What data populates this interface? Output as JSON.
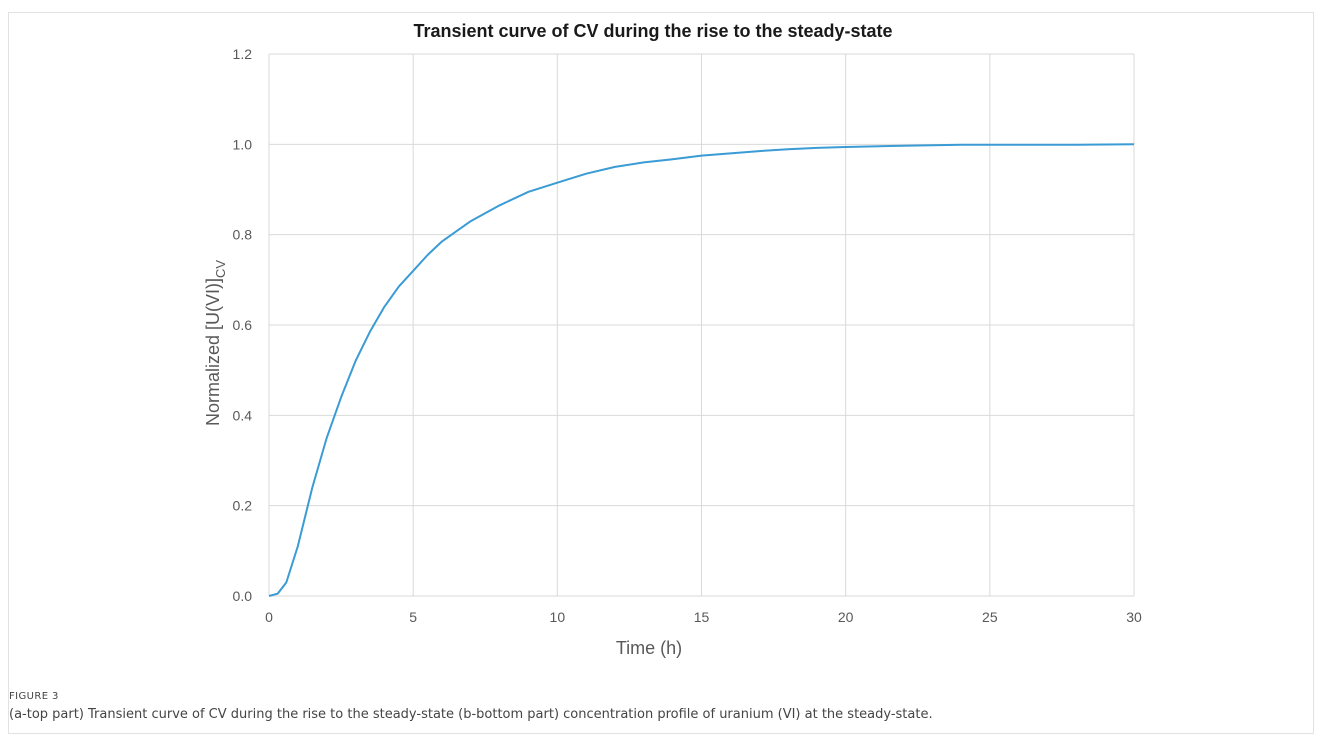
{
  "caption": {
    "label": "FIGURE 3",
    "text": "(a-top part) Transient curve of CV during the rise to the steady-state (b-bottom part) concentration profile of uranium (VI) at the steady-state."
  },
  "chart_data": {
    "type": "line",
    "title": "Transient curve of CV during the rise to the steady-state",
    "xlabel": "Time (h)",
    "ylabel_main": "Normalized [U(VI)]",
    "ylabel_sub": "CV",
    "xlim": [
      0,
      30
    ],
    "ylim": [
      0,
      1.2
    ],
    "x_ticks": [
      "0",
      "5",
      "10",
      "15",
      "20",
      "25",
      "30"
    ],
    "x_tick_values": [
      0,
      5,
      10,
      15,
      20,
      25,
      30
    ],
    "y_ticks": [
      "0.0",
      "0.2",
      "0.4",
      "0.6",
      "0.8",
      "1.0",
      "1.2"
    ],
    "y_tick_values": [
      0,
      0.2,
      0.4,
      0.6,
      0.8,
      1.0,
      1.2
    ],
    "grid": true,
    "line_color": "#3a9bd5",
    "series": [
      {
        "x": [
          0,
          0.3,
          0.6,
          1.0,
          1.5,
          2.0,
          2.5,
          3.0,
          3.5,
          4.0,
          4.5,
          5.0,
          5.5,
          6.0,
          7.0,
          8.0,
          9.0,
          10.0,
          11.0,
          12.0,
          13.0,
          14.0,
          15.0,
          16.0,
          17.0,
          18.0,
          19.0,
          20.0,
          22.0,
          24.0,
          26.0,
          28.0,
          30.0
        ],
        "values": [
          0.0,
          0.005,
          0.03,
          0.11,
          0.24,
          0.35,
          0.44,
          0.52,
          0.585,
          0.64,
          0.685,
          0.72,
          0.755,
          0.785,
          0.83,
          0.865,
          0.895,
          0.915,
          0.935,
          0.95,
          0.96,
          0.967,
          0.975,
          0.98,
          0.985,
          0.989,
          0.992,
          0.994,
          0.997,
          0.999,
          0.999,
          0.999,
          1.0
        ]
      }
    ]
  }
}
